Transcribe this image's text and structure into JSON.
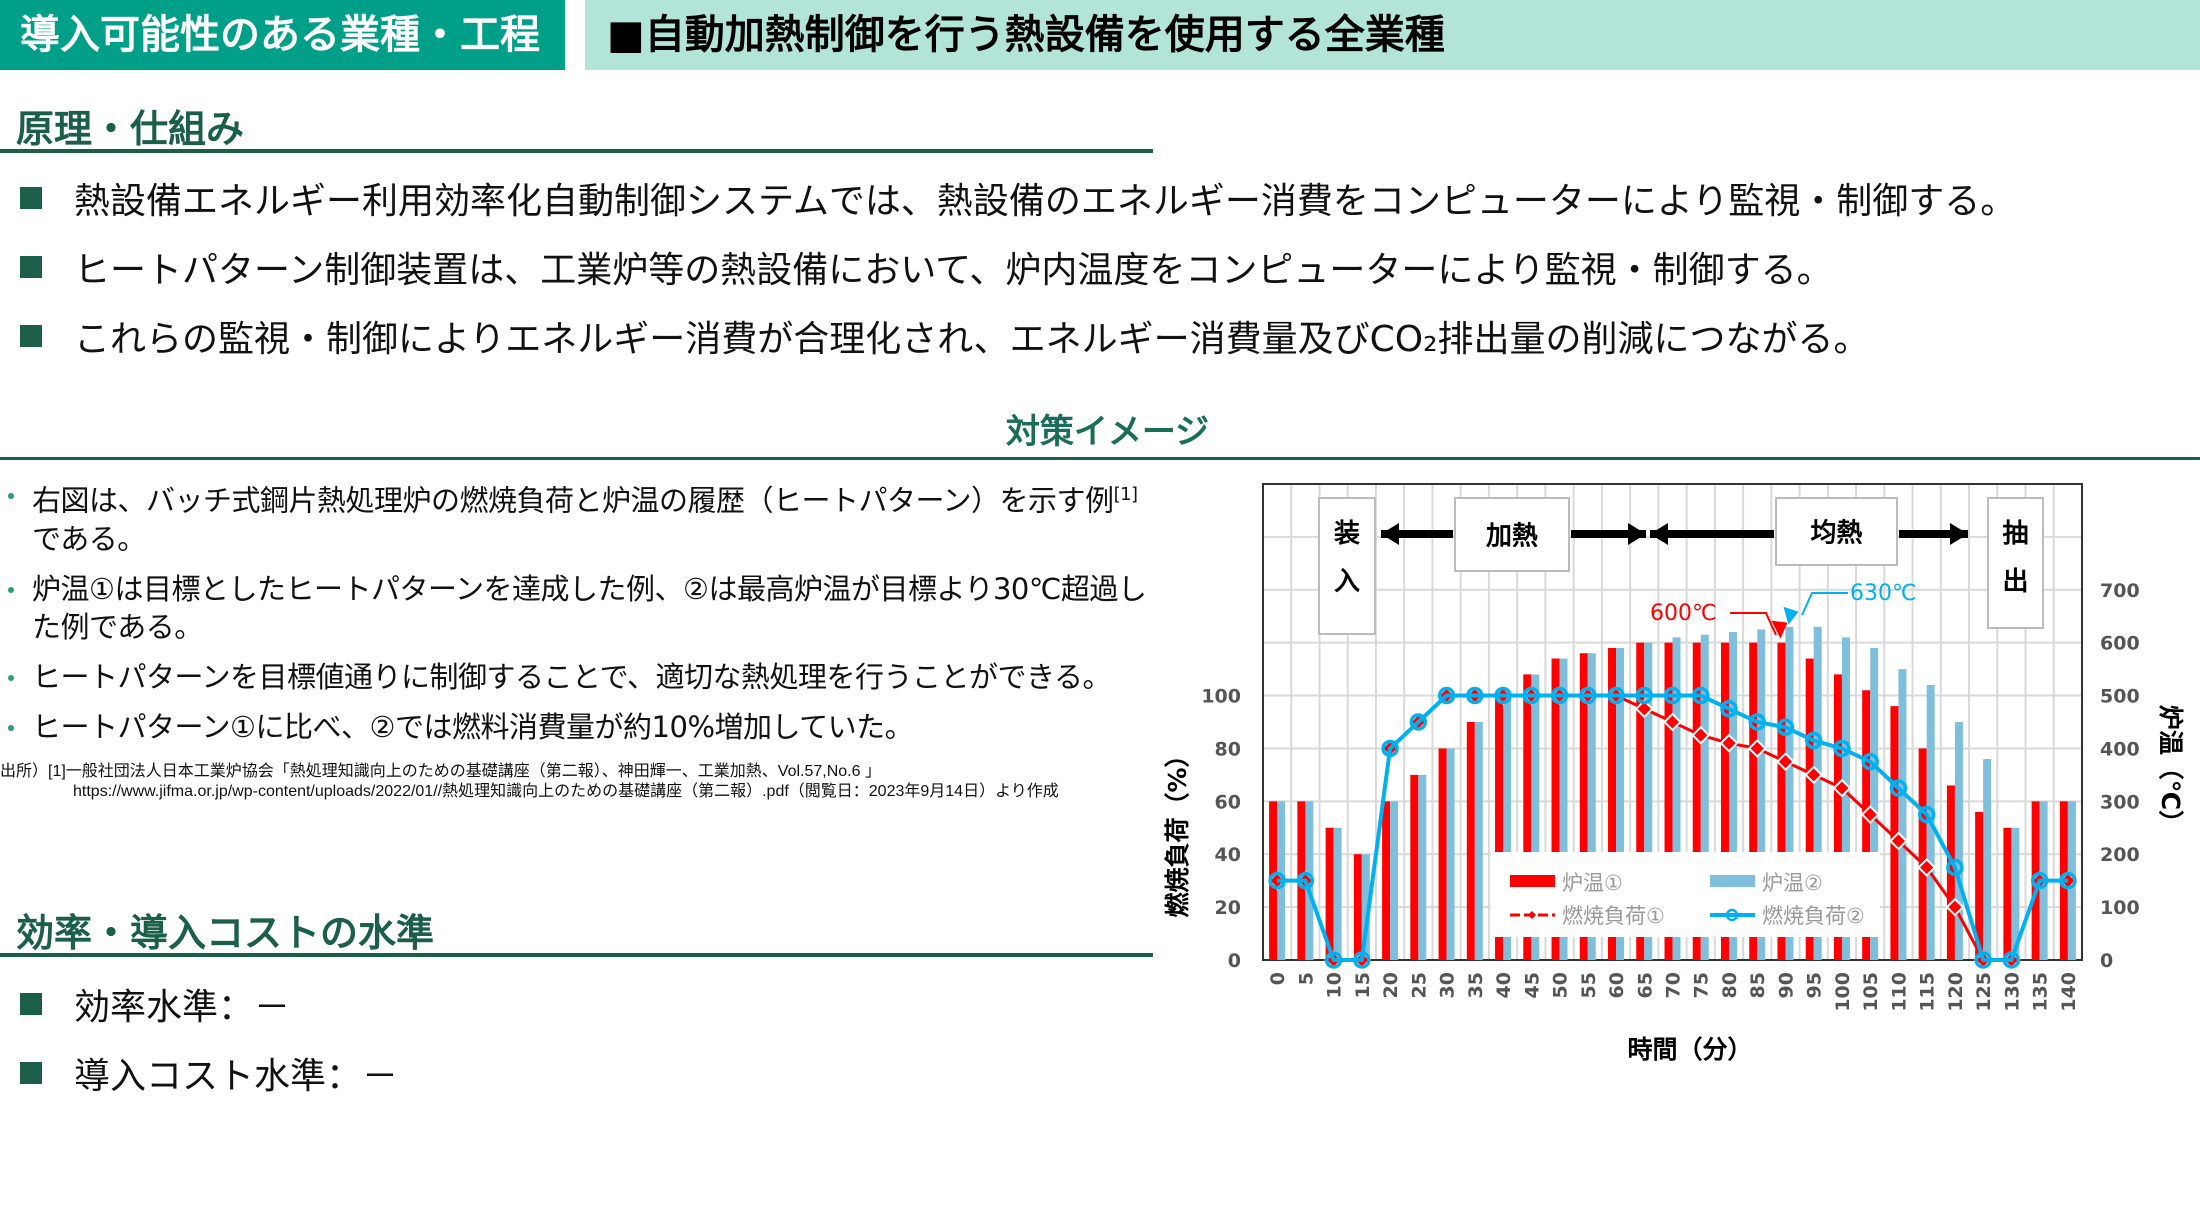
{
  "header": {
    "left_title": "導入可能性のある業種・工程",
    "right_title": "■自動加熱制御を行う熱設備を使用する全業種"
  },
  "principle": {
    "title": "原理・仕組み",
    "bullets": [
      "熱設備エネルギー利用効率化自動制御システムでは、熱設備のエネルギー消費をコンピューターにより監視・制御する。",
      "ヒートパターン制御装置は、工業炉等の熱設備において、炉内温度をコンピューターにより監視・制御する。",
      "これらの監視・制御によりエネルギー消費が合理化され、エネルギー消費量及びCO₂排出量の削減につながる。"
    ]
  },
  "measure": {
    "title": "対策イメージ",
    "bullets": [
      {
        "before": "右図は、バッチ式鋼片熱処理炉の燃焼負荷と炉温の履歴（ヒートパターン）を示す例",
        "ref": "[1]",
        "after": "である。"
      },
      {
        "before": "炉温①は目標としたヒートパターンを達成した例、②は最高炉温が目標より30℃超過した例である。",
        "ref": "",
        "after": ""
      },
      {
        "before": "ヒートパターンを目標値通りに制御することで、適切な熱処理を行うことができる。",
        "ref": "",
        "after": ""
      },
      {
        "before": "ヒートパターン①に比べ、②では燃料消費量が約10%増加していた。",
        "ref": "",
        "after": ""
      }
    ],
    "source_line1": "出所）[1]一般社団法人日本工業炉協会「熱処理知識向上のための基礎講座（第二報）、神田輝一、工業加熱、Vol.57,No.6 」",
    "source_line2": "https://www.jifma.or.jp/wp-content/uploads/2022/01//熱処理知識向上のための基礎講座（第二報）.pdf（閲覧日：2023年9月14日）より作成"
  },
  "efficiency": {
    "title": "効率・導入コストの水準",
    "bullets": [
      "効率水準：－",
      "導入コスト水準：－"
    ]
  },
  "chart_data": {
    "type": "bar+line",
    "xlabel": "時間（分）",
    "ylabel_left": "燃焼負荷（%）",
    "ylabel_right": "炉温（℃）",
    "x": [
      0,
      5,
      10,
      15,
      20,
      25,
      30,
      35,
      40,
      45,
      50,
      55,
      60,
      65,
      70,
      75,
      80,
      85,
      90,
      95,
      100,
      105,
      110,
      115,
      120,
      125,
      130,
      135,
      140
    ],
    "left_ticks": [
      0,
      20,
      40,
      60,
      80,
      100
    ],
    "right_ticks": [
      0,
      100,
      200,
      300,
      400,
      500,
      600,
      700
    ],
    "left_range": [
      0,
      180
    ],
    "right_range": [
      0,
      900
    ],
    "grid": true,
    "legend_position": "bottom-center",
    "series": [
      {
        "name": "炉温①",
        "kind": "bar",
        "axis": "right",
        "color": "#ff0000",
        "values": [
          300,
          300,
          250,
          200,
          300,
          350,
          400,
          450,
          500,
          540,
          570,
          580,
          590,
          600,
          600,
          600,
          600,
          600,
          600,
          570,
          540,
          510,
          480,
          400,
          330,
          280,
          250,
          300,
          300
        ]
      },
      {
        "name": "炉温②",
        "kind": "bar",
        "axis": "right",
        "color": "#7fbfdc",
        "values": [
          300,
          300,
          250,
          200,
          300,
          350,
          400,
          450,
          500,
          540,
          570,
          580,
          590,
          600,
          610,
          615,
          620,
          625,
          630,
          630,
          610,
          590,
          550,
          520,
          450,
          380,
          250,
          300,
          300
        ]
      },
      {
        "name": "燃焼負荷①",
        "kind": "line",
        "marker": "diamond",
        "axis": "left",
        "color": "#ff0000",
        "values": [
          30,
          30,
          0,
          0,
          80,
          90,
          100,
          100,
          100,
          100,
          100,
          100,
          100,
          95,
          90,
          85,
          82,
          80,
          75,
          70,
          65,
          55,
          45,
          35,
          20,
          0,
          0,
          30,
          30
        ]
      },
      {
        "name": "燃焼負荷②",
        "kind": "line",
        "marker": "circle",
        "axis": "left",
        "color": "#00b0f0",
        "values": [
          30,
          30,
          0,
          0,
          80,
          90,
          100,
          100,
          100,
          100,
          100,
          100,
          100,
          100,
          100,
          100,
          95,
          90,
          88,
          83,
          80,
          75,
          65,
          55,
          35,
          0,
          0,
          30,
          30
        ]
      }
    ],
    "phases": [
      "装入",
      "加熱",
      "均熱",
      "抽出"
    ],
    "annotations": {
      "peak1": "600℃",
      "peak2": "630℃"
    }
  }
}
